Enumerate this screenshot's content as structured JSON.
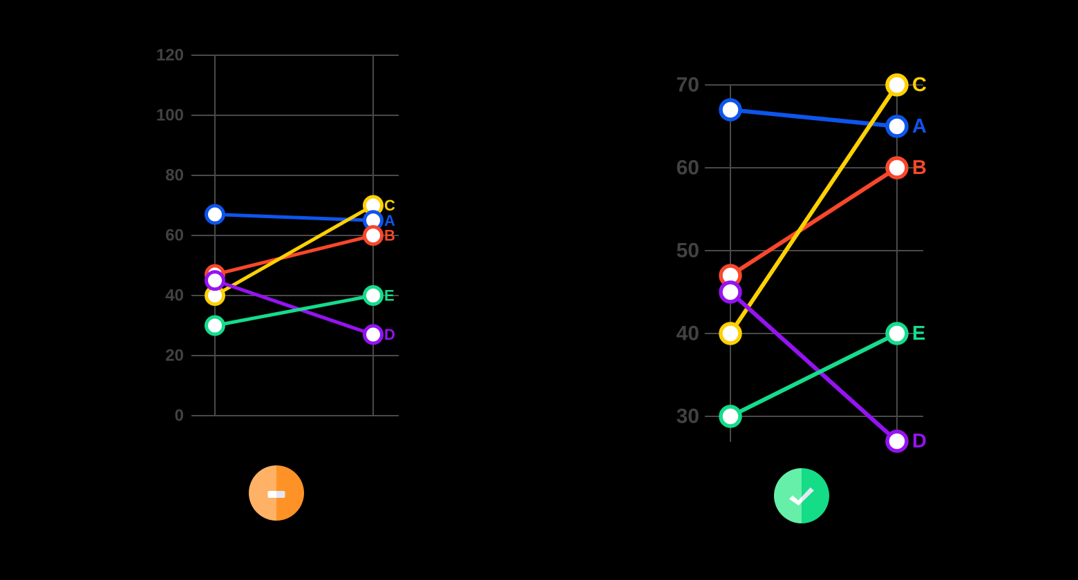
{
  "figure": {
    "description_labels": [],
    "background_color": "#000000",
    "grid_color": "#4A4A4A",
    "tick_label_color": "#424242",
    "point_fill_color": "#FFFFFF"
  },
  "chart_data": [
    {
      "type": "line",
      "variant": "slopegraph",
      "title": "",
      "x_labels": [
        "",
        ""
      ],
      "series": [
        {
          "name": "A",
          "color": "#0E55EC",
          "values": [
            67,
            65
          ]
        },
        {
          "name": "B",
          "color": "#F8472B",
          "values": [
            47,
            60
          ]
        },
        {
          "name": "C",
          "color": "#FFD103",
          "values": [
            40,
            70
          ]
        },
        {
          "name": "D",
          "color": "#9513F2",
          "values": [
            45,
            27
          ]
        },
        {
          "name": "E",
          "color": "#15DC8C",
          "values": [
            30,
            40
          ]
        }
      ],
      "y_ticks": [
        0,
        20,
        40,
        60,
        80,
        100,
        120
      ],
      "ylim": [
        0,
        120
      ],
      "grid": true,
      "legend": "direct-labels-right",
      "verdict": "not-recommended"
    },
    {
      "type": "line",
      "variant": "slopegraph",
      "title": "",
      "x_labels": [
        "",
        ""
      ],
      "series": [
        {
          "name": "A",
          "color": "#0E55EC",
          "values": [
            67,
            65
          ]
        },
        {
          "name": "B",
          "color": "#F8472B",
          "values": [
            47,
            60
          ]
        },
        {
          "name": "C",
          "color": "#FFD103",
          "values": [
            40,
            70
          ]
        },
        {
          "name": "D",
          "color": "#9513F2",
          "values": [
            45,
            27
          ]
        },
        {
          "name": "E",
          "color": "#15DC8C",
          "values": [
            30,
            40
          ]
        }
      ],
      "y_ticks": [
        30,
        40,
        50,
        60,
        70
      ],
      "ylim": [
        27,
        71
      ],
      "grid": true,
      "legend": "direct-labels-right",
      "verdict": "recommended"
    }
  ],
  "icons": {
    "bad": {
      "glyph": "minus",
      "left_color": "#FFB165",
      "right_color": "#FF9226",
      "glyph_left_color": "#FFFFFF",
      "glyph_right_color": "#E3E6F3"
    },
    "good": {
      "glyph": "check",
      "left_color": "#66EFA8",
      "right_color": "#14DC87",
      "glyph_left_color": "#FFFFFF",
      "glyph_right_color": "#E3E6F3"
    }
  }
}
